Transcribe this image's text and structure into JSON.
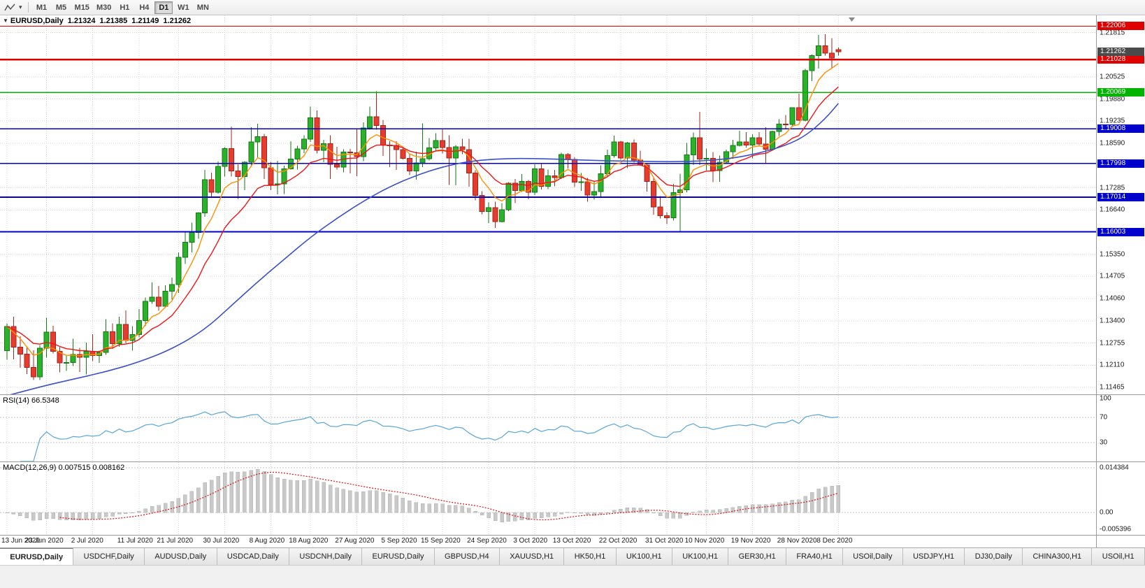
{
  "toolbar": {
    "timeframes": [
      "M1",
      "M5",
      "M15",
      "M30",
      "H1",
      "H4",
      "D1",
      "W1",
      "MN"
    ],
    "active_timeframe": "D1",
    "caret": "▾"
  },
  "chart_header": {
    "marker": "▼",
    "symbol": "EURUSD,Daily",
    "open": "1.21324",
    "high": "1.21385",
    "low": "1.21149",
    "close": "1.21262"
  },
  "rsi_panel": {
    "label": "RSI(14) 66.5348",
    "axis_labels": [
      "100",
      "70",
      "30"
    ]
  },
  "macd_panel": {
    "label": "MACD(12,26,9) 0.007515 0.008162",
    "axis_labels": [
      "0.014384",
      "0.00",
      "-0.005396"
    ]
  },
  "price_axis": {
    "ticks": [
      "1.21815",
      "1.20525",
      "1.19880",
      "1.19235",
      "1.18590",
      "1.17285",
      "1.16640",
      "1.15350",
      "1.14705",
      "1.14060",
      "1.13400",
      "1.12755",
      "1.12110",
      "1.11465"
    ],
    "badges": [
      {
        "label": "1.22006",
        "value": 1.22006,
        "color": "#e00000",
        "kind": "resistance"
      },
      {
        "label": "1.21028",
        "value": 1.21028,
        "color": "#e00000",
        "kind": "resistance"
      },
      {
        "label": "1.21262",
        "value": 1.21262,
        "color": "#4a4a4a",
        "kind": "current-price"
      },
      {
        "label": "1.20069",
        "value": 1.20069,
        "color": "#00b400",
        "kind": "support"
      },
      {
        "label": "1.19008",
        "value": 1.19008,
        "color": "#0000cd",
        "kind": "support"
      },
      {
        "label": "1.17998",
        "value": 1.17998,
        "color": "#0000cd",
        "kind": "support"
      },
      {
        "label": "1.17014",
        "value": 1.17014,
        "color": "#0000cd",
        "kind": "support"
      },
      {
        "label": "1.16003",
        "value": 1.16003,
        "color": "#0000cd",
        "kind": "support"
      }
    ]
  },
  "tabs": {
    "items": [
      "EURUSD,Daily",
      "USDCHF,Daily",
      "AUDUSD,Daily",
      "USDCAD,Daily",
      "USDCNH,Daily",
      "EURUSD,Daily",
      "GBPUSD,H4",
      "XAUUSD,H1",
      "HK50,H1",
      "UK100,H1",
      "UK100,H1",
      "GER30,H1",
      "FRA40,H1",
      "USOil,Daily",
      "USDJPY,H1",
      "DJ30,Daily",
      "CHINA300,H1",
      "USOil,H1"
    ],
    "active_index": 0
  },
  "chart_data": {
    "type": "candlestick",
    "title": "EURUSD,Daily",
    "symbol": "EURUSD",
    "period": "Daily",
    "y_axis": {
      "visible_high": 1.2232,
      "visible_low": 1.1126
    },
    "date_labels": [
      {
        "text": "13 Jun 2020",
        "index": 0
      },
      {
        "text": "23 Jun 2020",
        "index": 6
      },
      {
        "text": "2 Jul 2020",
        "index": 13
      },
      {
        "text": "11 Jul 2020",
        "index": 20
      },
      {
        "text": "21 Jul 2020",
        "index": 26
      },
      {
        "text": "30 Jul 2020",
        "index": 33
      },
      {
        "text": "8 Aug 2020",
        "index": 40
      },
      {
        "text": "18 Aug 2020",
        "index": 46
      },
      {
        "text": "27 Aug 2020",
        "index": 53
      },
      {
        "text": "5 Sep 2020",
        "index": 60
      },
      {
        "text": "15 Sep 2020",
        "index": 66
      },
      {
        "text": "24 Sep 2020",
        "index": 73
      },
      {
        "text": "3 Oct 2020",
        "index": 80
      },
      {
        "text": "13 Oct 2020",
        "index": 86
      },
      {
        "text": "22 Oct 2020",
        "index": 93
      },
      {
        "text": "31 Oct 2020",
        "index": 100
      },
      {
        "text": "10 Nov 2020",
        "index": 106
      },
      {
        "text": "19 Nov 2020",
        "index": 113
      },
      {
        "text": "28 Nov 2020",
        "index": 120
      },
      {
        "text": "8 Dec 2020",
        "index": 126
      }
    ],
    "levels": [
      {
        "price": 1.22006,
        "color": "#e00000",
        "width": 1.2
      },
      {
        "price": 1.21028,
        "color": "#e00000",
        "width": 2.6
      },
      {
        "price": 1.20069,
        "color": "#00b400",
        "width": 1.8
      },
      {
        "price": 1.19008,
        "color": "#0000cd",
        "width": 1.8
      },
      {
        "price": 1.17998,
        "color": "#0000cd",
        "width": 1.8
      },
      {
        "price": 1.17014,
        "color": "#0000cd",
        "width": 1.8
      },
      {
        "price": 1.16003,
        "color": "#0000cd",
        "width": 1.8
      }
    ],
    "current_price": 1.21262,
    "colors": {
      "up": "#2ab32a",
      "up_border": "#157a15",
      "down": "#e73b2e",
      "down_border": "#a3271d",
      "grid": "#d6d6d6"
    },
    "moving_averages": [
      {
        "name": "fast",
        "type": "ema",
        "period": 6,
        "color": "#ff9000"
      },
      {
        "name": "mid",
        "type": "ema",
        "period": 13,
        "color": "#ee1515"
      },
      {
        "name": "slow",
        "type": "points",
        "color": "#3a50cc",
        "points": [
          [
            0,
            1.1122
          ],
          [
            5,
            1.1148
          ],
          [
            10,
            1.117
          ],
          [
            15,
            1.1192
          ],
          [
            20,
            1.122
          ],
          [
            25,
            1.1258
          ],
          [
            30,
            1.1315
          ],
          [
            34,
            1.1385
          ],
          [
            38,
            1.1455
          ],
          [
            42,
            1.152
          ],
          [
            46,
            1.1585
          ],
          [
            50,
            1.164
          ],
          [
            54,
            1.169
          ],
          [
            58,
            1.1732
          ],
          [
            62,
            1.1765
          ],
          [
            66,
            1.179
          ],
          [
            70,
            1.1806
          ],
          [
            74,
            1.1813
          ],
          [
            78,
            1.1815
          ],
          [
            84,
            1.1812
          ],
          [
            90,
            1.1808
          ],
          [
            96,
            1.1806
          ],
          [
            102,
            1.1805
          ],
          [
            106,
            1.1808
          ],
          [
            110,
            1.1815
          ],
          [
            114,
            1.183
          ],
          [
            118,
            1.1852
          ],
          [
            121,
            1.188
          ],
          [
            124,
            1.193
          ],
          [
            126,
            1.1975
          ]
        ]
      }
    ],
    "rsi": {
      "period": 14,
      "color": "#58a6d8",
      "levels": [
        70,
        30
      ],
      "current": 66.5348
    },
    "macd": {
      "fast": 12,
      "slow": 26,
      "signal": 9,
      "axis_max": 0.014384,
      "axis_min": -0.005396,
      "histogram_color": "#c9c9c9",
      "signal_color": "#e01010",
      "current_main": 0.007515,
      "current_signal": 0.008162
    },
    "ohlc": [
      [
        1.1254,
        1.1333,
        1.1227,
        1.1324
      ],
      [
        1.1324,
        1.1353,
        1.1228,
        1.1264
      ],
      [
        1.1264,
        1.1295,
        1.1204,
        1.1243
      ],
      [
        1.1243,
        1.1262,
        1.1185,
        1.1205
      ],
      [
        1.1205,
        1.1255,
        1.1168,
        1.1177
      ],
      [
        1.1177,
        1.127,
        1.1168,
        1.1261
      ],
      [
        1.1261,
        1.1349,
        1.1233,
        1.1308
      ],
      [
        1.1308,
        1.1326,
        1.1245,
        1.1251
      ],
      [
        1.1251,
        1.1264,
        1.119,
        1.1218
      ],
      [
        1.1218,
        1.1239,
        1.1194,
        1.1219
      ],
      [
        1.1219,
        1.1288,
        1.1209,
        1.1242
      ],
      [
        1.1242,
        1.1262,
        1.1191,
        1.1234
      ],
      [
        1.1234,
        1.1277,
        1.1184,
        1.1251
      ],
      [
        1.1251,
        1.1302,
        1.1223,
        1.1239
      ],
      [
        1.1239,
        1.1254,
        1.1218,
        1.1248
      ],
      [
        1.1248,
        1.1345,
        1.1241,
        1.1309
      ],
      [
        1.1309,
        1.1333,
        1.1259,
        1.1274
      ],
      [
        1.1274,
        1.1352,
        1.1265,
        1.133
      ],
      [
        1.133,
        1.1371,
        1.1275,
        1.1283
      ],
      [
        1.1283,
        1.1325,
        1.1254,
        1.13
      ],
      [
        1.13,
        1.1375,
        1.1292,
        1.1341
      ],
      [
        1.1341,
        1.1409,
        1.1325,
        1.1397
      ],
      [
        1.1397,
        1.1452,
        1.139,
        1.141
      ],
      [
        1.141,
        1.1442,
        1.137,
        1.1383
      ],
      [
        1.1383,
        1.1444,
        1.1378,
        1.1427
      ],
      [
        1.1427,
        1.1467,
        1.1402,
        1.1446
      ],
      [
        1.1446,
        1.154,
        1.1422,
        1.1526
      ],
      [
        1.1526,
        1.1601,
        1.1507,
        1.157
      ],
      [
        1.157,
        1.1627,
        1.154,
        1.1598
      ],
      [
        1.1598,
        1.1658,
        1.158,
        1.1656
      ],
      [
        1.1656,
        1.1781,
        1.1644,
        1.1752
      ],
      [
        1.1752,
        1.1773,
        1.17,
        1.1716
      ],
      [
        1.1716,
        1.1806,
        1.1712,
        1.1791
      ],
      [
        1.1791,
        1.1847,
        1.1762,
        1.1843
      ],
      [
        1.1843,
        1.1908,
        1.1762,
        1.1778
      ],
      [
        1.1778,
        1.1797,
        1.1696,
        1.1762
      ],
      [
        1.1762,
        1.1807,
        1.1722,
        1.1803
      ],
      [
        1.1803,
        1.1905,
        1.179,
        1.1863
      ],
      [
        1.1863,
        1.1916,
        1.1818,
        1.1878
      ],
      [
        1.1878,
        1.1886,
        1.1754,
        1.1787
      ],
      [
        1.1787,
        1.1805,
        1.1722,
        1.1738
      ],
      [
        1.1738,
        1.1808,
        1.171,
        1.174
      ],
      [
        1.174,
        1.1793,
        1.1711,
        1.1784
      ],
      [
        1.1784,
        1.1865,
        1.1782,
        1.1813
      ],
      [
        1.1813,
        1.1851,
        1.1782,
        1.1842
      ],
      [
        1.1842,
        1.1882,
        1.183,
        1.1871
      ],
      [
        1.1871,
        1.1966,
        1.1863,
        1.1933
      ],
      [
        1.1933,
        1.1954,
        1.1829,
        1.1838
      ],
      [
        1.1838,
        1.1869,
        1.1803,
        1.1858
      ],
      [
        1.1858,
        1.1882,
        1.1754,
        1.1797
      ],
      [
        1.1797,
        1.1848,
        1.1782,
        1.1789
      ],
      [
        1.1789,
        1.1841,
        1.1774,
        1.1833
      ],
      [
        1.1833,
        1.1842,
        1.1771,
        1.1831
      ],
      [
        1.1831,
        1.19,
        1.1763,
        1.182
      ],
      [
        1.182,
        1.192,
        1.1807,
        1.1903
      ],
      [
        1.1903,
        1.1966,
        1.1898,
        1.1936
      ],
      [
        1.1936,
        1.2011,
        1.1898,
        1.1911
      ],
      [
        1.1911,
        1.1927,
        1.1822,
        1.1853
      ],
      [
        1.1853,
        1.1865,
        1.1789,
        1.1852
      ],
      [
        1.1852,
        1.1865,
        1.1781,
        1.184
      ],
      [
        1.184,
        1.1849,
        1.1812,
        1.1815
      ],
      [
        1.1815,
        1.1827,
        1.1766,
        1.1778
      ],
      [
        1.1778,
        1.1834,
        1.1752,
        1.1801
      ],
      [
        1.1801,
        1.1917,
        1.1789,
        1.1814
      ],
      [
        1.1814,
        1.1874,
        1.1809,
        1.1845
      ],
      [
        1.1845,
        1.1888,
        1.1839,
        1.1867
      ],
      [
        1.1867,
        1.19,
        1.1829,
        1.1846
      ],
      [
        1.1846,
        1.1882,
        1.1737,
        1.1816
      ],
      [
        1.1816,
        1.1853,
        1.1736,
        1.1848
      ],
      [
        1.1848,
        1.1872,
        1.1827,
        1.184
      ],
      [
        1.184,
        1.1872,
        1.1732,
        1.1772
      ],
      [
        1.1772,
        1.178,
        1.1692,
        1.1707
      ],
      [
        1.1707,
        1.1719,
        1.1651,
        1.166
      ],
      [
        1.166,
        1.1686,
        1.1626,
        1.1671
      ],
      [
        1.1671,
        1.1688,
        1.1612,
        1.163
      ],
      [
        1.163,
        1.1684,
        1.1628,
        1.1665
      ],
      [
        1.1665,
        1.1745,
        1.1661,
        1.1742
      ],
      [
        1.1742,
        1.1755,
        1.1684,
        1.1721
      ],
      [
        1.1721,
        1.1769,
        1.1717,
        1.1747
      ],
      [
        1.1747,
        1.1751,
        1.1695,
        1.1716
      ],
      [
        1.1716,
        1.1797,
        1.1708,
        1.1784
      ],
      [
        1.1784,
        1.1798,
        1.1724,
        1.1733
      ],
      [
        1.1733,
        1.1782,
        1.1725,
        1.1764
      ],
      [
        1.1764,
        1.1781,
        1.1733,
        1.1759
      ],
      [
        1.1759,
        1.1831,
        1.1754,
        1.1826
      ],
      [
        1.1826,
        1.183,
        1.1785,
        1.1812
      ],
      [
        1.1812,
        1.1818,
        1.1731,
        1.1745
      ],
      [
        1.1745,
        1.1772,
        1.172,
        1.1746
      ],
      [
        1.1746,
        1.1758,
        1.1688,
        1.1708
      ],
      [
        1.1708,
        1.1746,
        1.1694,
        1.1718
      ],
      [
        1.1718,
        1.1794,
        1.1703,
        1.177
      ],
      [
        1.177,
        1.184,
        1.176,
        1.1823
      ],
      [
        1.1823,
        1.1881,
        1.1817,
        1.1863
      ],
      [
        1.1863,
        1.1866,
        1.1811,
        1.1816
      ],
      [
        1.1816,
        1.1863,
        1.1786,
        1.186
      ],
      [
        1.186,
        1.187,
        1.1802,
        1.181
      ],
      [
        1.181,
        1.1837,
        1.1793,
        1.1795
      ],
      [
        1.1795,
        1.18,
        1.1718,
        1.1747
      ],
      [
        1.1747,
        1.1759,
        1.165,
        1.1673
      ],
      [
        1.1673,
        1.1704,
        1.1639,
        1.1647
      ],
      [
        1.1647,
        1.1658,
        1.1623,
        1.1641
      ],
      [
        1.1641,
        1.174,
        1.1633,
        1.1715
      ],
      [
        1.1715,
        1.177,
        1.1602,
        1.1723
      ],
      [
        1.1723,
        1.186,
        1.1716,
        1.1825
      ],
      [
        1.1825,
        1.189,
        1.1795,
        1.1875
      ],
      [
        1.1875,
        1.195,
        1.1795,
        1.1813
      ],
      [
        1.1813,
        1.1843,
        1.178,
        1.1815
      ],
      [
        1.1815,
        1.1833,
        1.1745,
        1.1779
      ],
      [
        1.1779,
        1.1823,
        1.1746,
        1.1803
      ],
      [
        1.1803,
        1.184,
        1.1799,
        1.1834
      ],
      [
        1.1834,
        1.1869,
        1.1814,
        1.1852
      ],
      [
        1.1852,
        1.1895,
        1.1849,
        1.1863
      ],
      [
        1.1863,
        1.1891,
        1.1846,
        1.1853
      ],
      [
        1.1853,
        1.1885,
        1.1815,
        1.1875
      ],
      [
        1.1875,
        1.1891,
        1.1849,
        1.1857
      ],
      [
        1.1857,
        1.1906,
        1.18,
        1.1841
      ],
      [
        1.1841,
        1.1895,
        1.1838,
        1.1893
      ],
      [
        1.1893,
        1.1929,
        1.188,
        1.1915
      ],
      [
        1.1915,
        1.1941,
        1.1899,
        1.1914
      ],
      [
        1.1914,
        1.1964,
        1.1907,
        1.1963
      ],
      [
        1.1963,
        1.2003,
        1.1924,
        1.1926
      ],
      [
        1.1926,
        1.2076,
        1.1923,
        1.2071
      ],
      [
        1.2071,
        1.2118,
        1.204,
        1.2115
      ],
      [
        1.2115,
        1.2175,
        1.2077,
        1.2143
      ],
      [
        1.2143,
        1.2177,
        1.2115,
        1.2122
      ],
      [
        1.2122,
        1.2166,
        1.2079,
        1.2108
      ],
      [
        1.21324,
        1.21385,
        1.21149,
        1.21262
      ]
    ]
  }
}
